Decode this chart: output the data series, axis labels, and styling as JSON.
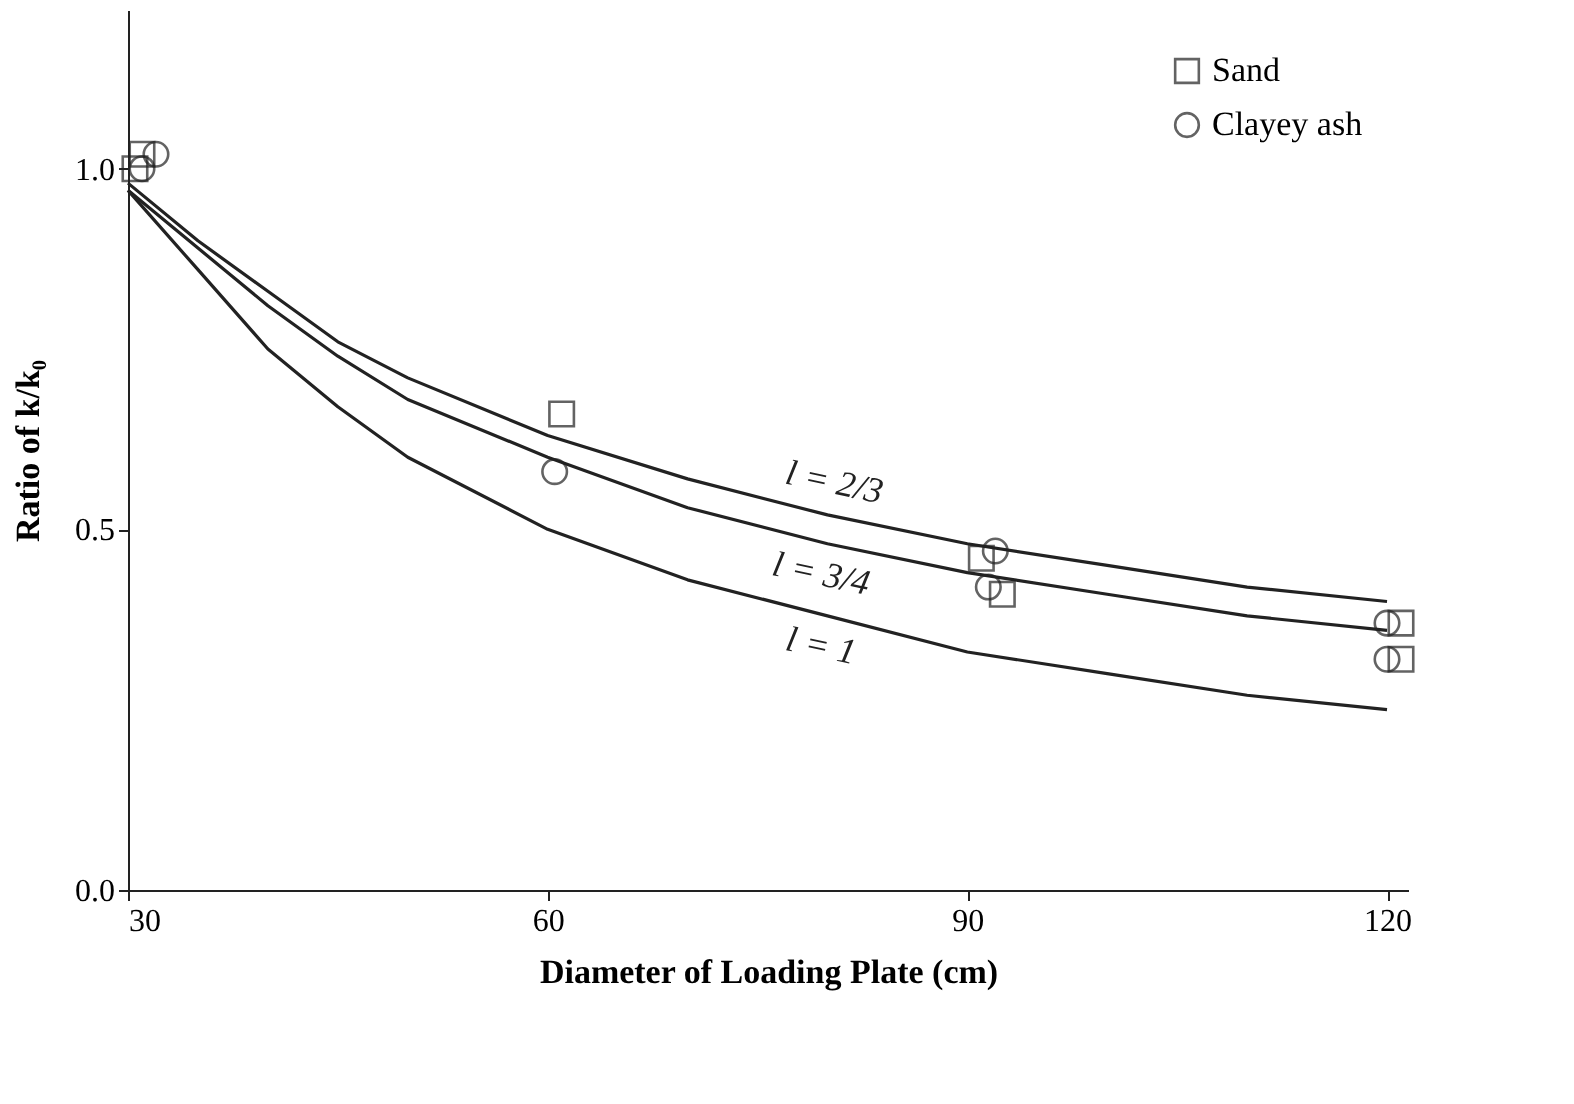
{
  "chart_data": {
    "type": "line",
    "xlabel": "Diameter of Loading Plate (cm)",
    "ylabel": "Ratio of k/k₀",
    "xlim": [
      30,
      121.5
    ],
    "xticks": [
      30,
      60,
      90,
      120
    ],
    "ylim": [
      0,
      1.22
    ],
    "yticks": [
      {
        "value": 0,
        "label": "0.0"
      },
      0.5,
      {
        "value": 1,
        "label": "1.0"
      }
    ],
    "grid": false,
    "legend": "top right",
    "line_style": "solid",
    "series": [
      {
        "name": "l = 2/3",
        "color": "#222222",
        "marker": "none",
        "x": [
          30,
          35,
          40,
          45,
          50,
          60,
          70,
          80,
          90,
          100,
          110,
          120
        ],
        "values": [
          0.98,
          0.9,
          0.83,
          0.76,
          0.71,
          0.63,
          0.57,
          0.52,
          0.48,
          0.45,
          0.42,
          0.4
        ]
      },
      {
        "name": "l = 3/4",
        "color": "#222222",
        "marker": "none",
        "x": [
          30,
          35,
          40,
          45,
          50,
          60,
          70,
          80,
          90,
          100,
          110,
          120
        ],
        "values": [
          0.97,
          0.89,
          0.81,
          0.74,
          0.68,
          0.6,
          0.53,
          0.48,
          0.44,
          0.41,
          0.38,
          0.36
        ]
      },
      {
        "name": "l = 1",
        "color": "#222222",
        "marker": "none",
        "x": [
          30,
          35,
          40,
          45,
          50,
          60,
          70,
          80,
          90,
          100,
          110,
          120
        ],
        "values": [
          0.97,
          0.86,
          0.75,
          0.67,
          0.6,
          0.5,
          0.43,
          0.38,
          0.33,
          0.3,
          0.27,
          0.25
        ]
      },
      {
        "type": "scatter",
        "name": "Sand",
        "color": "#222222",
        "marker": "square",
        "x": [
          31,
          30.5,
          61,
          91,
          92.5,
          121,
          121
        ],
        "values": [
          1.02,
          1.0,
          0.66,
          0.46,
          0.41,
          0.37,
          0.32
        ]
      },
      {
        "type": "scatter",
        "name": "Clayey ash",
        "color": "#222222",
        "marker": "circle",
        "x": [
          32,
          31,
          60.5,
          92,
          91.5,
          120,
          120
        ],
        "values": [
          1.02,
          1.0,
          0.58,
          0.47,
          0.42,
          0.37,
          0.32
        ]
      }
    ]
  }
}
